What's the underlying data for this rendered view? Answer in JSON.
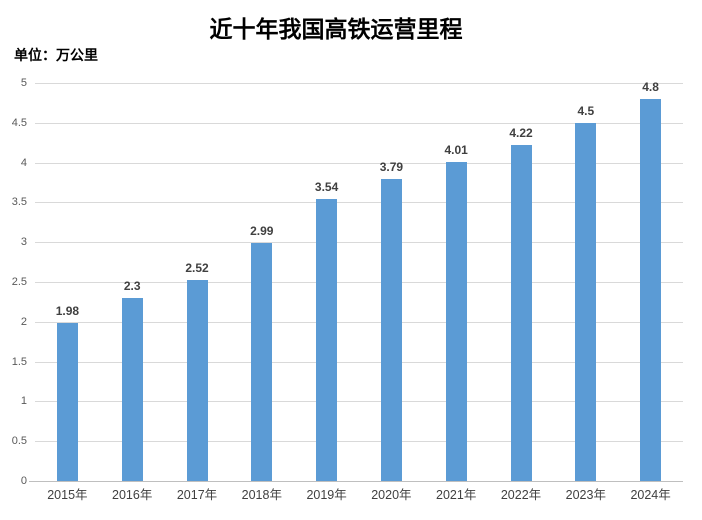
{
  "chart_data": {
    "type": "bar",
    "title": "近十年我国高铁运营里程",
    "unit_label": "单位：万公里",
    "categories": [
      "2015年",
      "2016年",
      "2017年",
      "2018年",
      "2019年",
      "2020年",
      "2021年",
      "2022年",
      "2023年",
      "2024年"
    ],
    "values": [
      1.98,
      2.3,
      2.52,
      2.99,
      3.54,
      3.79,
      4.01,
      4.22,
      4.5,
      4.8
    ],
    "value_labels": [
      "1.98",
      "2.3",
      "2.52",
      "2.99",
      "3.54",
      "3.79",
      "4.01",
      "4.22",
      "4.5",
      "4.8"
    ],
    "ylim": [
      0,
      5
    ],
    "ytick_step": 0.5,
    "ytick_labels": [
      "0",
      "0.5",
      "1",
      "1.5",
      "2",
      "2.5",
      "3",
      "3.5",
      "4",
      "4.5",
      "5"
    ],
    "grid": true,
    "legend": "none",
    "xlabel": "",
    "ylabel": "",
    "colors": {
      "bar": "#5B9BD5",
      "gridline": "#D9D9D9",
      "axis_line": "#BFBFBF",
      "y_tick_label": "#595959",
      "x_tick_label": "#404040",
      "data_label": "#404040",
      "title": "#000000",
      "background": "#FFFFFF"
    }
  }
}
